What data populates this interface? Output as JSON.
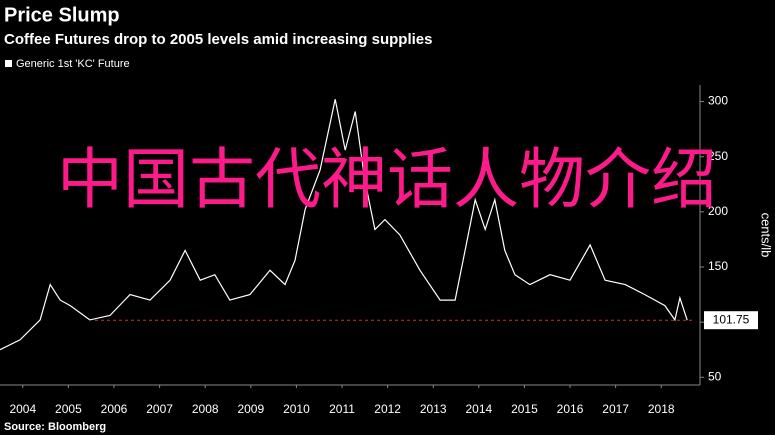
{
  "overlay_text": "中国古代神话人物介绍",
  "chart_data": {
    "type": "line",
    "title": "Price Slump",
    "subtitle": "Coffee Futures drop to 2005 levels amid increasing supplies",
    "source": "Source: Bloomberg",
    "y_label": "cents/lb",
    "x": [
      2004.0,
      2004.44,
      2004.88,
      2005.1,
      2005.32,
      2005.54,
      2005.97,
      2006.41,
      2006.85,
      2007.29,
      2007.73,
      2008.06,
      2008.39,
      2008.71,
      2009.04,
      2009.48,
      2009.92,
      2010.25,
      2010.47,
      2010.69,
      2011.02,
      2011.35,
      2011.57,
      2011.79,
      2012.0,
      2012.22,
      2012.44,
      2012.77,
      2013.21,
      2013.65,
      2013.98,
      2014.2,
      2014.42,
      2014.64,
      2014.85,
      2015.07,
      2015.29,
      2015.62,
      2016.06,
      2016.5,
      2016.94,
      2017.27,
      2017.71,
      2018.14,
      2018.58,
      2018.8,
      2018.91,
      2019.07
    ],
    "series": [
      {
        "name": "Generic 1st 'KC' Future",
        "color": "#ffffff",
        "values": [
          75,
          84,
          102,
          134,
          120,
          115,
          102,
          106,
          125,
          120,
          138,
          165,
          138,
          143,
          120,
          125,
          147,
          134,
          156,
          202,
          238,
          302,
          256,
          291,
          229,
          184,
          193,
          179,
          147,
          120,
          120,
          165,
          211,
          184,
          211,
          165,
          143,
          134,
          143,
          138,
          170,
          138,
          134,
          125,
          115,
          102,
          122,
          101.75
        ]
      }
    ],
    "reference_line": {
      "value": 101.75,
      "color": "#c0392b"
    },
    "xlim": [
      2004.0,
      2019.35
    ],
    "ylim": [
      43,
      315
    ],
    "xticks": [
      {
        "value": 2004.5,
        "label": "2004"
      },
      {
        "value": 2005.5,
        "label": "2005"
      },
      {
        "value": 2006.5,
        "label": "2006"
      },
      {
        "value": 2007.5,
        "label": "2007"
      },
      {
        "value": 2008.5,
        "label": "2008"
      },
      {
        "value": 2009.5,
        "label": "2009"
      },
      {
        "value": 2010.5,
        "label": "2010"
      },
      {
        "value": 2011.5,
        "label": "2011"
      },
      {
        "value": 2012.5,
        "label": "2012"
      },
      {
        "value": 2013.5,
        "label": "2013"
      },
      {
        "value": 2014.5,
        "label": "2014"
      },
      {
        "value": 2015.5,
        "label": "2015"
      },
      {
        "value": 2016.5,
        "label": "2016"
      },
      {
        "value": 2017.5,
        "label": "2017"
      },
      {
        "value": 2018.5,
        "label": "2018"
      }
    ],
    "yticks": [
      50,
      100,
      150,
      200,
      250,
      300
    ]
  }
}
